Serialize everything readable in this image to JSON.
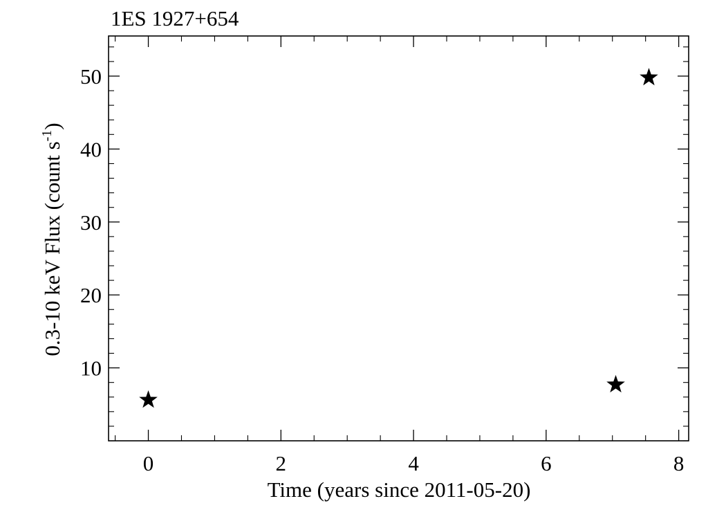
{
  "chart_data": {
    "type": "scatter",
    "title": "1ES 1927+654",
    "xlabel": "Time (years since 2011-05-20)",
    "ylabel": {
      "main": "0.3-10 keV Flux (count s",
      "superscript": "-1",
      "closing": ")"
    },
    "xlim": [
      -0.6,
      8.15
    ],
    "ylim": [
      0,
      55.5
    ],
    "x_ticks": [
      0,
      2,
      4,
      6,
      8
    ],
    "x_tick_labels": [
      "0",
      "2",
      "4",
      "6",
      "8"
    ],
    "y_ticks": [
      10,
      20,
      30,
      40,
      50
    ],
    "y_tick_labels": [
      "10",
      "20",
      "30",
      "40",
      "50"
    ],
    "x_minor_step": 0.5,
    "y_minor_step": 2,
    "marker": "star",
    "grid": false,
    "series": [
      {
        "x": [
          0.0,
          7.05,
          7.55
        ],
        "y": [
          5.6,
          7.7,
          49.8
        ]
      }
    ],
    "colors": {
      "axis": "#000000",
      "marker": "#000000",
      "background": "#ffffff"
    }
  }
}
